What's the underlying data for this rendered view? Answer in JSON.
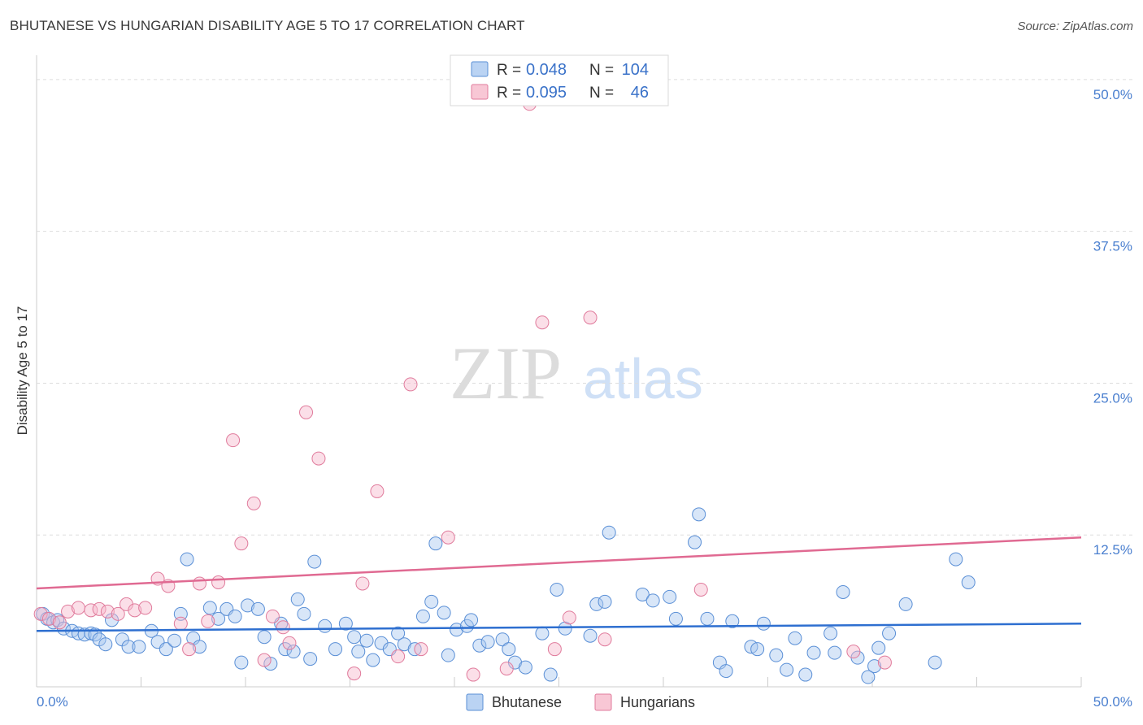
{
  "chart_data": {
    "type": "scatter",
    "title": "BHUTANESE VS HUNGARIAN DISABILITY AGE 5 TO 17 CORRELATION CHART",
    "source": "Source: ZipAtlas.com",
    "xlabel": "",
    "ylabel": "Disability Age 5 to 17",
    "xlim": [
      0,
      50
    ],
    "ylim": [
      0,
      52
    ],
    "x_tick_labels": [
      "0.0%",
      "50.0%"
    ],
    "y_ticks": [
      12.5,
      25.0,
      37.5,
      50.0
    ],
    "y_tick_labels": [
      "12.5%",
      "25.0%",
      "37.5%",
      "50.0%"
    ],
    "watermark": {
      "zip": "ZIP",
      "atlas": "atlas"
    },
    "legend": {
      "r_label": "R =",
      "n_label": "N =",
      "entries": [
        {
          "name": "Bhutanese",
          "r": "0.048",
          "n": "104",
          "color": "#a9c8f0",
          "edge": "#5a8fd6"
        },
        {
          "name": "Hungarians",
          "r": "0.095",
          "n": "46",
          "color": "#f6b9cb",
          "edge": "#e07b9c"
        }
      ]
    },
    "series": [
      {
        "name": "Bhutanese",
        "color": "#a9c8f0",
        "edge": "#5a8fd6",
        "trend_color": "#2e6fd0",
        "trend": {
          "x": [
            0,
            50
          ],
          "y": [
            4.6,
            5.2
          ]
        },
        "points": [
          [
            0.3,
            6.0
          ],
          [
            0.5,
            5.6
          ],
          [
            0.8,
            5.3
          ],
          [
            1.0,
            5.5
          ],
          [
            1.3,
            4.8
          ],
          [
            1.7,
            4.6
          ],
          [
            2.0,
            4.4
          ],
          [
            2.3,
            4.3
          ],
          [
            2.6,
            4.4
          ],
          [
            2.8,
            4.3
          ],
          [
            3.0,
            3.9
          ],
          [
            3.3,
            3.5
          ],
          [
            3.6,
            5.5
          ],
          [
            4.1,
            3.9
          ],
          [
            4.4,
            3.3
          ],
          [
            4.9,
            3.3
          ],
          [
            5.5,
            4.6
          ],
          [
            5.8,
            3.7
          ],
          [
            6.2,
            3.1
          ],
          [
            6.6,
            3.8
          ],
          [
            6.9,
            6.0
          ],
          [
            7.2,
            10.5
          ],
          [
            7.5,
            4.0
          ],
          [
            7.8,
            3.3
          ],
          [
            8.3,
            6.5
          ],
          [
            8.7,
            5.6
          ],
          [
            9.1,
            6.4
          ],
          [
            9.5,
            5.8
          ],
          [
            9.8,
            2.0
          ],
          [
            10.1,
            6.7
          ],
          [
            10.6,
            6.4
          ],
          [
            10.9,
            4.1
          ],
          [
            11.2,
            1.9
          ],
          [
            11.7,
            5.2
          ],
          [
            11.9,
            3.1
          ],
          [
            12.3,
            2.9
          ],
          [
            12.5,
            7.2
          ],
          [
            12.8,
            6.0
          ],
          [
            13.1,
            2.3
          ],
          [
            13.3,
            10.3
          ],
          [
            13.8,
            5.0
          ],
          [
            14.3,
            3.1
          ],
          [
            14.8,
            5.2
          ],
          [
            15.2,
            4.1
          ],
          [
            15.4,
            2.9
          ],
          [
            15.8,
            3.8
          ],
          [
            16.1,
            2.2
          ],
          [
            16.5,
            3.6
          ],
          [
            16.9,
            3.1
          ],
          [
            17.3,
            4.4
          ],
          [
            17.6,
            3.5
          ],
          [
            18.1,
            3.1
          ],
          [
            18.5,
            5.8
          ],
          [
            18.9,
            7.0
          ],
          [
            19.1,
            11.8
          ],
          [
            19.5,
            6.1
          ],
          [
            19.7,
            2.6
          ],
          [
            20.1,
            4.7
          ],
          [
            20.6,
            5.0
          ],
          [
            20.8,
            5.5
          ],
          [
            21.2,
            3.4
          ],
          [
            21.6,
            3.7
          ],
          [
            22.3,
            3.9
          ],
          [
            22.6,
            3.1
          ],
          [
            22.9,
            2.0
          ],
          [
            23.4,
            1.6
          ],
          [
            24.2,
            4.4
          ],
          [
            24.6,
            1.0
          ],
          [
            24.9,
            8.0
          ],
          [
            25.3,
            4.8
          ],
          [
            26.5,
            4.2
          ],
          [
            26.8,
            6.8
          ],
          [
            27.2,
            7.0
          ],
          [
            27.4,
            12.7
          ],
          [
            29.0,
            7.6
          ],
          [
            29.5,
            7.1
          ],
          [
            30.3,
            7.4
          ],
          [
            30.6,
            5.6
          ],
          [
            31.5,
            11.9
          ],
          [
            31.7,
            14.2
          ],
          [
            32.1,
            5.6
          ],
          [
            32.7,
            2.0
          ],
          [
            33.0,
            1.3
          ],
          [
            33.3,
            5.4
          ],
          [
            34.2,
            3.3
          ],
          [
            34.5,
            3.1
          ],
          [
            34.8,
            5.2
          ],
          [
            35.4,
            2.6
          ],
          [
            35.9,
            1.4
          ],
          [
            36.3,
            4.0
          ],
          [
            36.8,
            1.0
          ],
          [
            37.2,
            2.8
          ],
          [
            38.0,
            4.4
          ],
          [
            38.2,
            2.8
          ],
          [
            38.6,
            7.8
          ],
          [
            39.3,
            2.4
          ],
          [
            39.8,
            0.8
          ],
          [
            40.1,
            1.7
          ],
          [
            40.3,
            3.2
          ],
          [
            40.8,
            4.4
          ],
          [
            41.6,
            6.8
          ],
          [
            43.0,
            2.0
          ],
          [
            44.0,
            10.5
          ],
          [
            44.6,
            8.6
          ]
        ]
      },
      {
        "name": "Hungarians",
        "color": "#f6b9cb",
        "edge": "#e07b9c",
        "trend_color": "#e06a92",
        "trend": {
          "x": [
            0,
            50
          ],
          "y": [
            8.1,
            12.3
          ]
        },
        "points": [
          [
            0.2,
            6.0
          ],
          [
            0.6,
            5.6
          ],
          [
            1.1,
            5.3
          ],
          [
            1.5,
            6.2
          ],
          [
            2.0,
            6.5
          ],
          [
            2.6,
            6.3
          ],
          [
            3.0,
            6.4
          ],
          [
            3.4,
            6.2
          ],
          [
            3.9,
            6.0
          ],
          [
            4.3,
            6.8
          ],
          [
            4.7,
            6.3
          ],
          [
            5.2,
            6.5
          ],
          [
            5.8,
            8.9
          ],
          [
            6.3,
            8.3
          ],
          [
            6.9,
            5.2
          ],
          [
            7.3,
            3.1
          ],
          [
            7.8,
            8.5
          ],
          [
            8.2,
            5.4
          ],
          [
            8.7,
            8.6
          ],
          [
            9.4,
            20.3
          ],
          [
            9.8,
            11.8
          ],
          [
            10.4,
            15.1
          ],
          [
            10.9,
            2.2
          ],
          [
            11.3,
            5.8
          ],
          [
            11.8,
            4.9
          ],
          [
            12.1,
            3.6
          ],
          [
            12.9,
            22.6
          ],
          [
            13.5,
            18.8
          ],
          [
            15.2,
            1.1
          ],
          [
            15.6,
            8.5
          ],
          [
            16.3,
            16.1
          ],
          [
            17.3,
            2.5
          ],
          [
            17.9,
            24.9
          ],
          [
            18.4,
            3.1
          ],
          [
            19.7,
            12.3
          ],
          [
            20.9,
            1.0
          ],
          [
            22.5,
            1.5
          ],
          [
            23.6,
            48.0
          ],
          [
            24.2,
            30.0
          ],
          [
            24.8,
            3.1
          ],
          [
            25.5,
            5.7
          ],
          [
            26.5,
            30.4
          ],
          [
            27.2,
            3.9
          ],
          [
            31.8,
            8.0
          ],
          [
            39.1,
            2.9
          ],
          [
            40.6,
            2.0
          ]
        ]
      }
    ]
  }
}
